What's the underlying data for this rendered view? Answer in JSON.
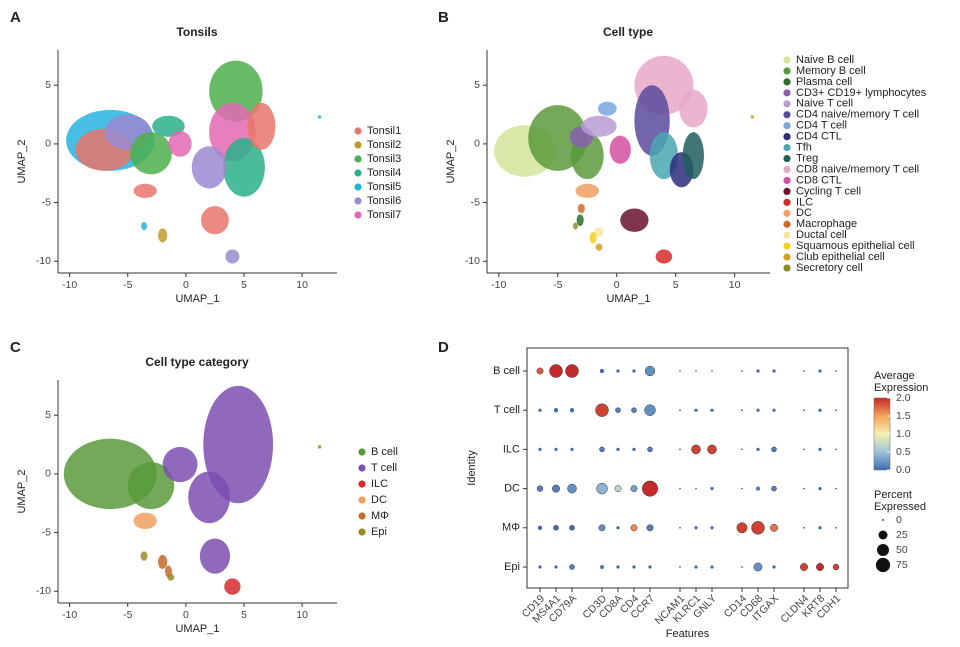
{
  "chart_data": [
    {
      "type": "scatter",
      "panel_label": "A",
      "title": "Tonsils",
      "x_label": "UMAP_1",
      "y_label": "UMAP_2",
      "xlim": [
        -11,
        13
      ],
      "ylim": [
        -11,
        8
      ],
      "xticks": [
        -10,
        -5,
        0,
        5,
        10
      ],
      "yticks": [
        -10,
        -5,
        0,
        5
      ],
      "series": [
        {
          "name": "Tonsil1",
          "color": "#e8766b"
        },
        {
          "name": "Tonsil2",
          "color": "#bf9a2a"
        },
        {
          "name": "Tonsil3",
          "color": "#4caf4c"
        },
        {
          "name": "Tonsil4",
          "color": "#2ab08a"
        },
        {
          "name": "Tonsil5",
          "color": "#27b3e0"
        },
        {
          "name": "Tonsil6",
          "color": "#9a8ad0"
        },
        {
          "name": "Tonsil7",
          "color": "#e368b4"
        }
      ]
    },
    {
      "type": "scatter",
      "panel_label": "B",
      "title": "Cell type",
      "x_label": "UMAP_1",
      "y_label": "UMAP_2",
      "xlim": [
        -11,
        13
      ],
      "ylim": [
        -11,
        8
      ],
      "xticks": [
        -10,
        -5,
        0,
        5,
        10
      ],
      "yticks": [
        -10,
        -5,
        0,
        5
      ],
      "series": [
        {
          "name": "Naive B cell",
          "color": "#d4e49a"
        },
        {
          "name": "Memory B cell",
          "color": "#5a9a3c"
        },
        {
          "name": "Plasma cell",
          "color": "#2e6e2e"
        },
        {
          "name": "CD3+ CD19+ lymphocytes",
          "color": "#8a5fb0"
        },
        {
          "name": "Naive T cell",
          "color": "#b79bd4"
        },
        {
          "name": "CD4 naive/memory T cell",
          "color": "#5a4a9c"
        },
        {
          "name": "CD4 T cell",
          "color": "#7ba6dd"
        },
        {
          "name": "CD4 CTL",
          "color": "#2b2e7a"
        },
        {
          "name": "Tfh",
          "color": "#4aa6b0"
        },
        {
          "name": "Treg",
          "color": "#1f5e5a"
        },
        {
          "name": "CD8 naive/memory T cell",
          "color": "#e7a8c8"
        },
        {
          "name": "CD8 CTL",
          "color": "#d44fa0"
        },
        {
          "name": "Cycling T cell",
          "color": "#6b1030"
        },
        {
          "name": "ILC",
          "color": "#d62c2c"
        },
        {
          "name": "DC",
          "color": "#f0a060"
        },
        {
          "name": "Macrophage",
          "color": "#d06a2a"
        },
        {
          "name": "Ductal cell",
          "color": "#f5e6a0"
        },
        {
          "name": "Squamous epithelial cell",
          "color": "#f5d020"
        },
        {
          "name": "Club epithelial cell",
          "color": "#d4a020"
        },
        {
          "name": "Secretory cell",
          "color": "#8a8a2a"
        }
      ]
    },
    {
      "type": "scatter",
      "panel_label": "C",
      "title": "Cell type category",
      "x_label": "UMAP_1",
      "y_label": "UMAP_2",
      "xlim": [
        -11,
        13
      ],
      "ylim": [
        -11,
        8
      ],
      "xticks": [
        -10,
        -5,
        0,
        5,
        10
      ],
      "yticks": [
        -10,
        -5,
        0,
        5
      ],
      "series": [
        {
          "name": "B cell",
          "color": "#5a9a3c"
        },
        {
          "name": "T cell",
          "color": "#7b4fb0"
        },
        {
          "name": "ILC",
          "color": "#d62c2c"
        },
        {
          "name": "DC",
          "color": "#f0a060"
        },
        {
          "name": "MΦ",
          "color": "#c46a2a"
        },
        {
          "name": "Epi",
          "color": "#9a8a2a"
        }
      ]
    },
    {
      "type": "dot",
      "panel_label": "D",
      "x_label": "Features",
      "y_label": "Identity",
      "categories": [
        "CD19",
        "MS4A1",
        "CD79A",
        "CD3D",
        "CD8A",
        "CD4",
        "CCR7",
        "NCAM1",
        "KLRC1",
        "GNLY",
        "CD14",
        "CD68",
        "ITGAX",
        "CLDN4",
        "KRT8",
        "CDH1"
      ],
      "rows": [
        "B cell",
        "T cell",
        "ILC",
        "DC",
        "MΦ",
        "Epi"
      ],
      "values": [
        [
          1.8,
          2.0,
          2.0,
          0,
          0,
          0,
          0.2,
          0,
          0,
          0,
          0,
          0,
          0,
          0,
          0,
          0
        ],
        [
          0,
          0,
          0,
          1.9,
          0.1,
          0.1,
          0.2,
          0,
          0,
          0,
          0,
          0,
          0,
          0,
          0,
          0
        ],
        [
          0,
          0,
          0,
          0.1,
          0,
          0,
          0.1,
          0,
          1.9,
          1.9,
          0,
          0,
          0.1,
          0,
          0,
          0
        ],
        [
          0.1,
          0.1,
          0.2,
          0.4,
          0.7,
          0.3,
          2.0,
          0,
          0,
          0,
          0,
          0.1,
          0.1,
          0,
          0,
          0
        ],
        [
          0,
          0,
          0,
          0.2,
          0,
          1.6,
          0.1,
          0,
          0,
          0,
          1.9,
          1.9,
          1.7,
          0,
          0,
          0
        ],
        [
          0,
          0,
          0.1,
          0.1,
          0,
          0,
          0,
          0,
          0,
          0,
          0,
          0.2,
          0,
          1.9,
          2.0,
          1.9
        ]
      ],
      "sizes": [
        [
          10,
          60,
          60,
          3,
          1,
          1,
          30,
          0,
          0,
          0,
          0,
          1,
          1,
          0,
          1,
          0
        ],
        [
          1,
          3,
          3,
          60,
          5,
          5,
          40,
          0,
          1,
          1,
          0,
          1,
          1,
          0,
          1,
          0
        ],
        [
          1,
          1,
          1,
          5,
          1,
          1,
          5,
          0,
          25,
          25,
          0,
          1,
          5,
          0,
          1,
          0
        ],
        [
          8,
          15,
          25,
          40,
          10,
          10,
          90,
          0,
          0,
          1,
          0,
          3,
          5,
          0,
          1,
          0
        ],
        [
          3,
          5,
          5,
          10,
          1,
          10,
          10,
          0,
          1,
          1,
          35,
          60,
          15,
          0,
          1,
          0
        ],
        [
          1,
          1,
          5,
          3,
          1,
          1,
          1,
          0,
          1,
          1,
          0,
          20,
          1,
          15,
          15,
          8
        ]
      ],
      "color_title": [
        "Average",
        "Expression"
      ],
      "clim": [
        0,
        2
      ],
      "cticks": [
        {
          "value": 0,
          "label": "0.0"
        },
        {
          "value": 0.5,
          "label": "0.5"
        },
        {
          "value": 1,
          "label": "1.0"
        },
        {
          "value": 1.5,
          "label": "1.5"
        },
        {
          "value": 2,
          "label": "2.0"
        }
      ],
      "size_title": [
        "Percent",
        "Expressed"
      ],
      "size_ticks": [
        0,
        25,
        50,
        75
      ]
    }
  ]
}
